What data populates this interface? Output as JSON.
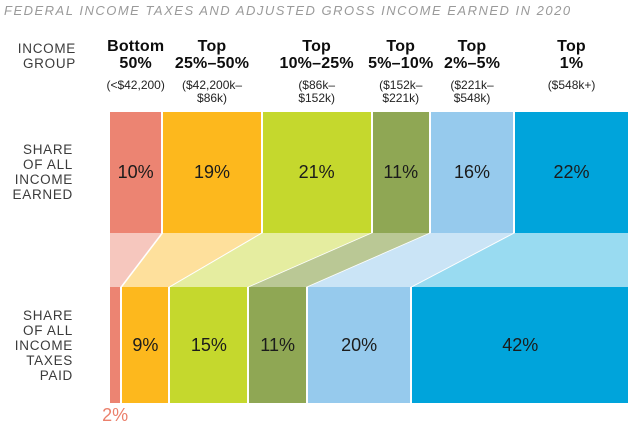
{
  "title": "FEDERAL INCOME TAXES AND ADJUSTED GROSS INCOME EARNED IN 2020",
  "left_labels": {
    "income_group": [
      "INCOME",
      "GROUP"
    ],
    "earned": [
      "SHARE",
      "OF ALL",
      "INCOME",
      "EARNED"
    ],
    "paid": [
      "SHARE",
      "OF ALL",
      "INCOME",
      "TAXES",
      "PAID"
    ]
  },
  "chart_data": {
    "type": "bar",
    "subtype": "two-row 100% stacked distribution with flow band",
    "title": "FEDERAL INCOME TAXES AND ADJUSTED GROSS INCOME EARNED IN 2020",
    "categories": [
      "Bottom 50%",
      "Top 25%–50%",
      "Top 10%–25%",
      "Top 5%–10%",
      "Top 2%–5%",
      "Top 1%"
    ],
    "thresholds": [
      "(<$42,200)",
      "($42,200k–$86k)",
      "($86k–$152k)",
      "($152k–$221k)",
      "($221k–$548k)",
      "($548k+)"
    ],
    "series": [
      {
        "name": "Share of all income earned",
        "values": [
          10,
          19,
          21,
          11,
          16,
          22
        ],
        "unit": "%"
      },
      {
        "name": "Share of all income taxes paid",
        "values": [
          2,
          9,
          15,
          11,
          20,
          42
        ],
        "unit": "%"
      }
    ],
    "groups": [
      {
        "name_lines": [
          "Bottom",
          "50%"
        ],
        "threshold_lines": [
          "(<$42,200)"
        ],
        "income_share_label": "10%",
        "tax_share_label": "2%",
        "color": "#EC8472"
      },
      {
        "name_lines": [
          "Top",
          "25%–50%"
        ],
        "threshold_lines": [
          "($42,200k–",
          "$86k)"
        ],
        "income_share_label": "19%",
        "tax_share_label": "9%",
        "color": "#FDB81D"
      },
      {
        "name_lines": [
          "Top",
          "10%–25%"
        ],
        "threshold_lines": [
          "($86k–",
          "$152k)"
        ],
        "income_share_label": "21%",
        "tax_share_label": "15%",
        "color": "#C5D82D"
      },
      {
        "name_lines": [
          "Top",
          "5%–10%"
        ],
        "threshold_lines": [
          "($152k–",
          "$221k)"
        ],
        "income_share_label": "11%",
        "tax_share_label": "11%",
        "color": "#8FA754"
      },
      {
        "name_lines": [
          "Top",
          "2%–5%"
        ],
        "threshold_lines": [
          "($221k–",
          "$548k)"
        ],
        "income_share_label": "16%",
        "tax_share_label": "20%",
        "color": "#96CAED"
      },
      {
        "name_lines": [
          "Top",
          "1%"
        ],
        "threshold_lines": [
          "($548k+)"
        ],
        "income_share_label": "22%",
        "tax_share_label": "42%",
        "color": "#00A4DB"
      }
    ],
    "flow_opacities": [
      0.46,
      0.44,
      0.45,
      0.62,
      0.5,
      0.4
    ],
    "layout_notes": {
      "values_sum": 99,
      "outside_label_row": "taxes",
      "outside_label_group": "Bottom 50%"
    },
    "accent_text_color": "#EB806C",
    "title_color": "#9A9A9A"
  }
}
